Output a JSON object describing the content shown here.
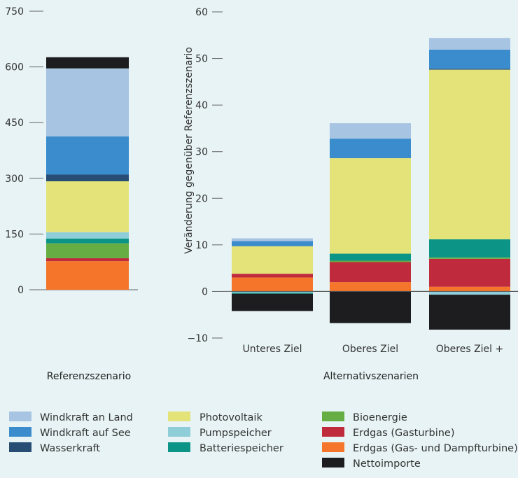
{
  "colors": {
    "Windkraft an Land": "#a7c4e3",
    "Windkraft auf See": "#3a8ccc",
    "Wasserkraft": "#274d75",
    "Photovoltaik": "#e4e37a",
    "Pumpspeicher": "#8fcdd8",
    "Batteriespeicher": "#0c9486",
    "Bioenergie": "#66ad44",
    "Erdgas (Gasturbine)": "#bf2b3c",
    "Erdgas (Gas- und Dampfturbine)": "#f5762a",
    "Nettoimporte": "#1d1d1f",
    "axis": "#666666",
    "background": "#e7f3f5"
  },
  "legend": [
    [
      "Windkraft an Land",
      "Windkraft auf See",
      "Wasserkraft"
    ],
    [
      "Photovoltaik",
      "Pumpspeicher",
      "Batteriespeicher"
    ],
    [
      "Bioenergie",
      "Erdgas (Gasturbine)",
      "Erdgas (Gas- und Dampfturbine)",
      "Nettoimporte"
    ]
  ],
  "chart_data": [
    {
      "type": "bar",
      "stacked": true,
      "panel_label": "Referenzszenario",
      "ylim": [
        0,
        750
      ],
      "yticks": [
        0,
        150,
        300,
        450,
        600,
        750
      ],
      "categories": [
        ""
      ],
      "series": [
        {
          "name": "Erdgas (Gas- und Dampfturbine)",
          "values": [
            77
          ]
        },
        {
          "name": "Erdgas (Gasturbine)",
          "values": [
            8
          ]
        },
        {
          "name": "Bioenergie",
          "values": [
            40
          ]
        },
        {
          "name": "Batteriespeicher",
          "values": [
            13
          ]
        },
        {
          "name": "Pumpspeicher",
          "values": [
            17
          ]
        },
        {
          "name": "Photovoltaik",
          "values": [
            137
          ]
        },
        {
          "name": "Wasserkraft",
          "values": [
            18
          ]
        },
        {
          "name": "Windkraft auf See",
          "values": [
            103
          ]
        },
        {
          "name": "Windkraft an Land",
          "values": [
            183
          ]
        },
        {
          "name": "Nettoimporte",
          "values": [
            30
          ]
        }
      ]
    },
    {
      "type": "bar",
      "stacked": true,
      "panel_label": "Alternativszenarien",
      "ylabel": "Veränderung gegenüber Referenzszenario",
      "ylim": [
        -10,
        60
      ],
      "yticks": [
        -10,
        0,
        10,
        20,
        30,
        40,
        50,
        60
      ],
      "categories": [
        "Unteres Ziel",
        "Oberes Ziel",
        "Oberes Ziel +"
      ],
      "series": [
        {
          "name": "Pumpspeicher",
          "values": [
            -0.3,
            0,
            -0.7
          ]
        },
        {
          "name": "Batteriespeicher",
          "values": [
            -0.2,
            0,
            0
          ]
        },
        {
          "name": "Nettoimporte",
          "values": [
            -3.7,
            -6.8,
            -7.5
          ]
        },
        {
          "name": "Erdgas (Gas- und Dampfturbine)",
          "values": [
            3.0,
            2.0,
            1.0
          ]
        },
        {
          "name": "Erdgas (Gasturbine)",
          "values": [
            0.8,
            4.3,
            6.0
          ]
        },
        {
          "name": "Bioenergie",
          "values": [
            0,
            0.3,
            0.3
          ]
        },
        {
          "name": "Batteriespeicher",
          "values": [
            0,
            1.5,
            3.9
          ]
        },
        {
          "name": "Photovoltaik",
          "values": [
            5.9,
            20.5,
            36.4
          ]
        },
        {
          "name": "Wasserkraft",
          "values": [
            0,
            0,
            0.2
          ]
        },
        {
          "name": "Windkraft auf See",
          "values": [
            1.1,
            4.2,
            4.1
          ]
        },
        {
          "name": "Windkraft an Land",
          "values": [
            0.6,
            3.3,
            2.5
          ]
        }
      ]
    }
  ]
}
